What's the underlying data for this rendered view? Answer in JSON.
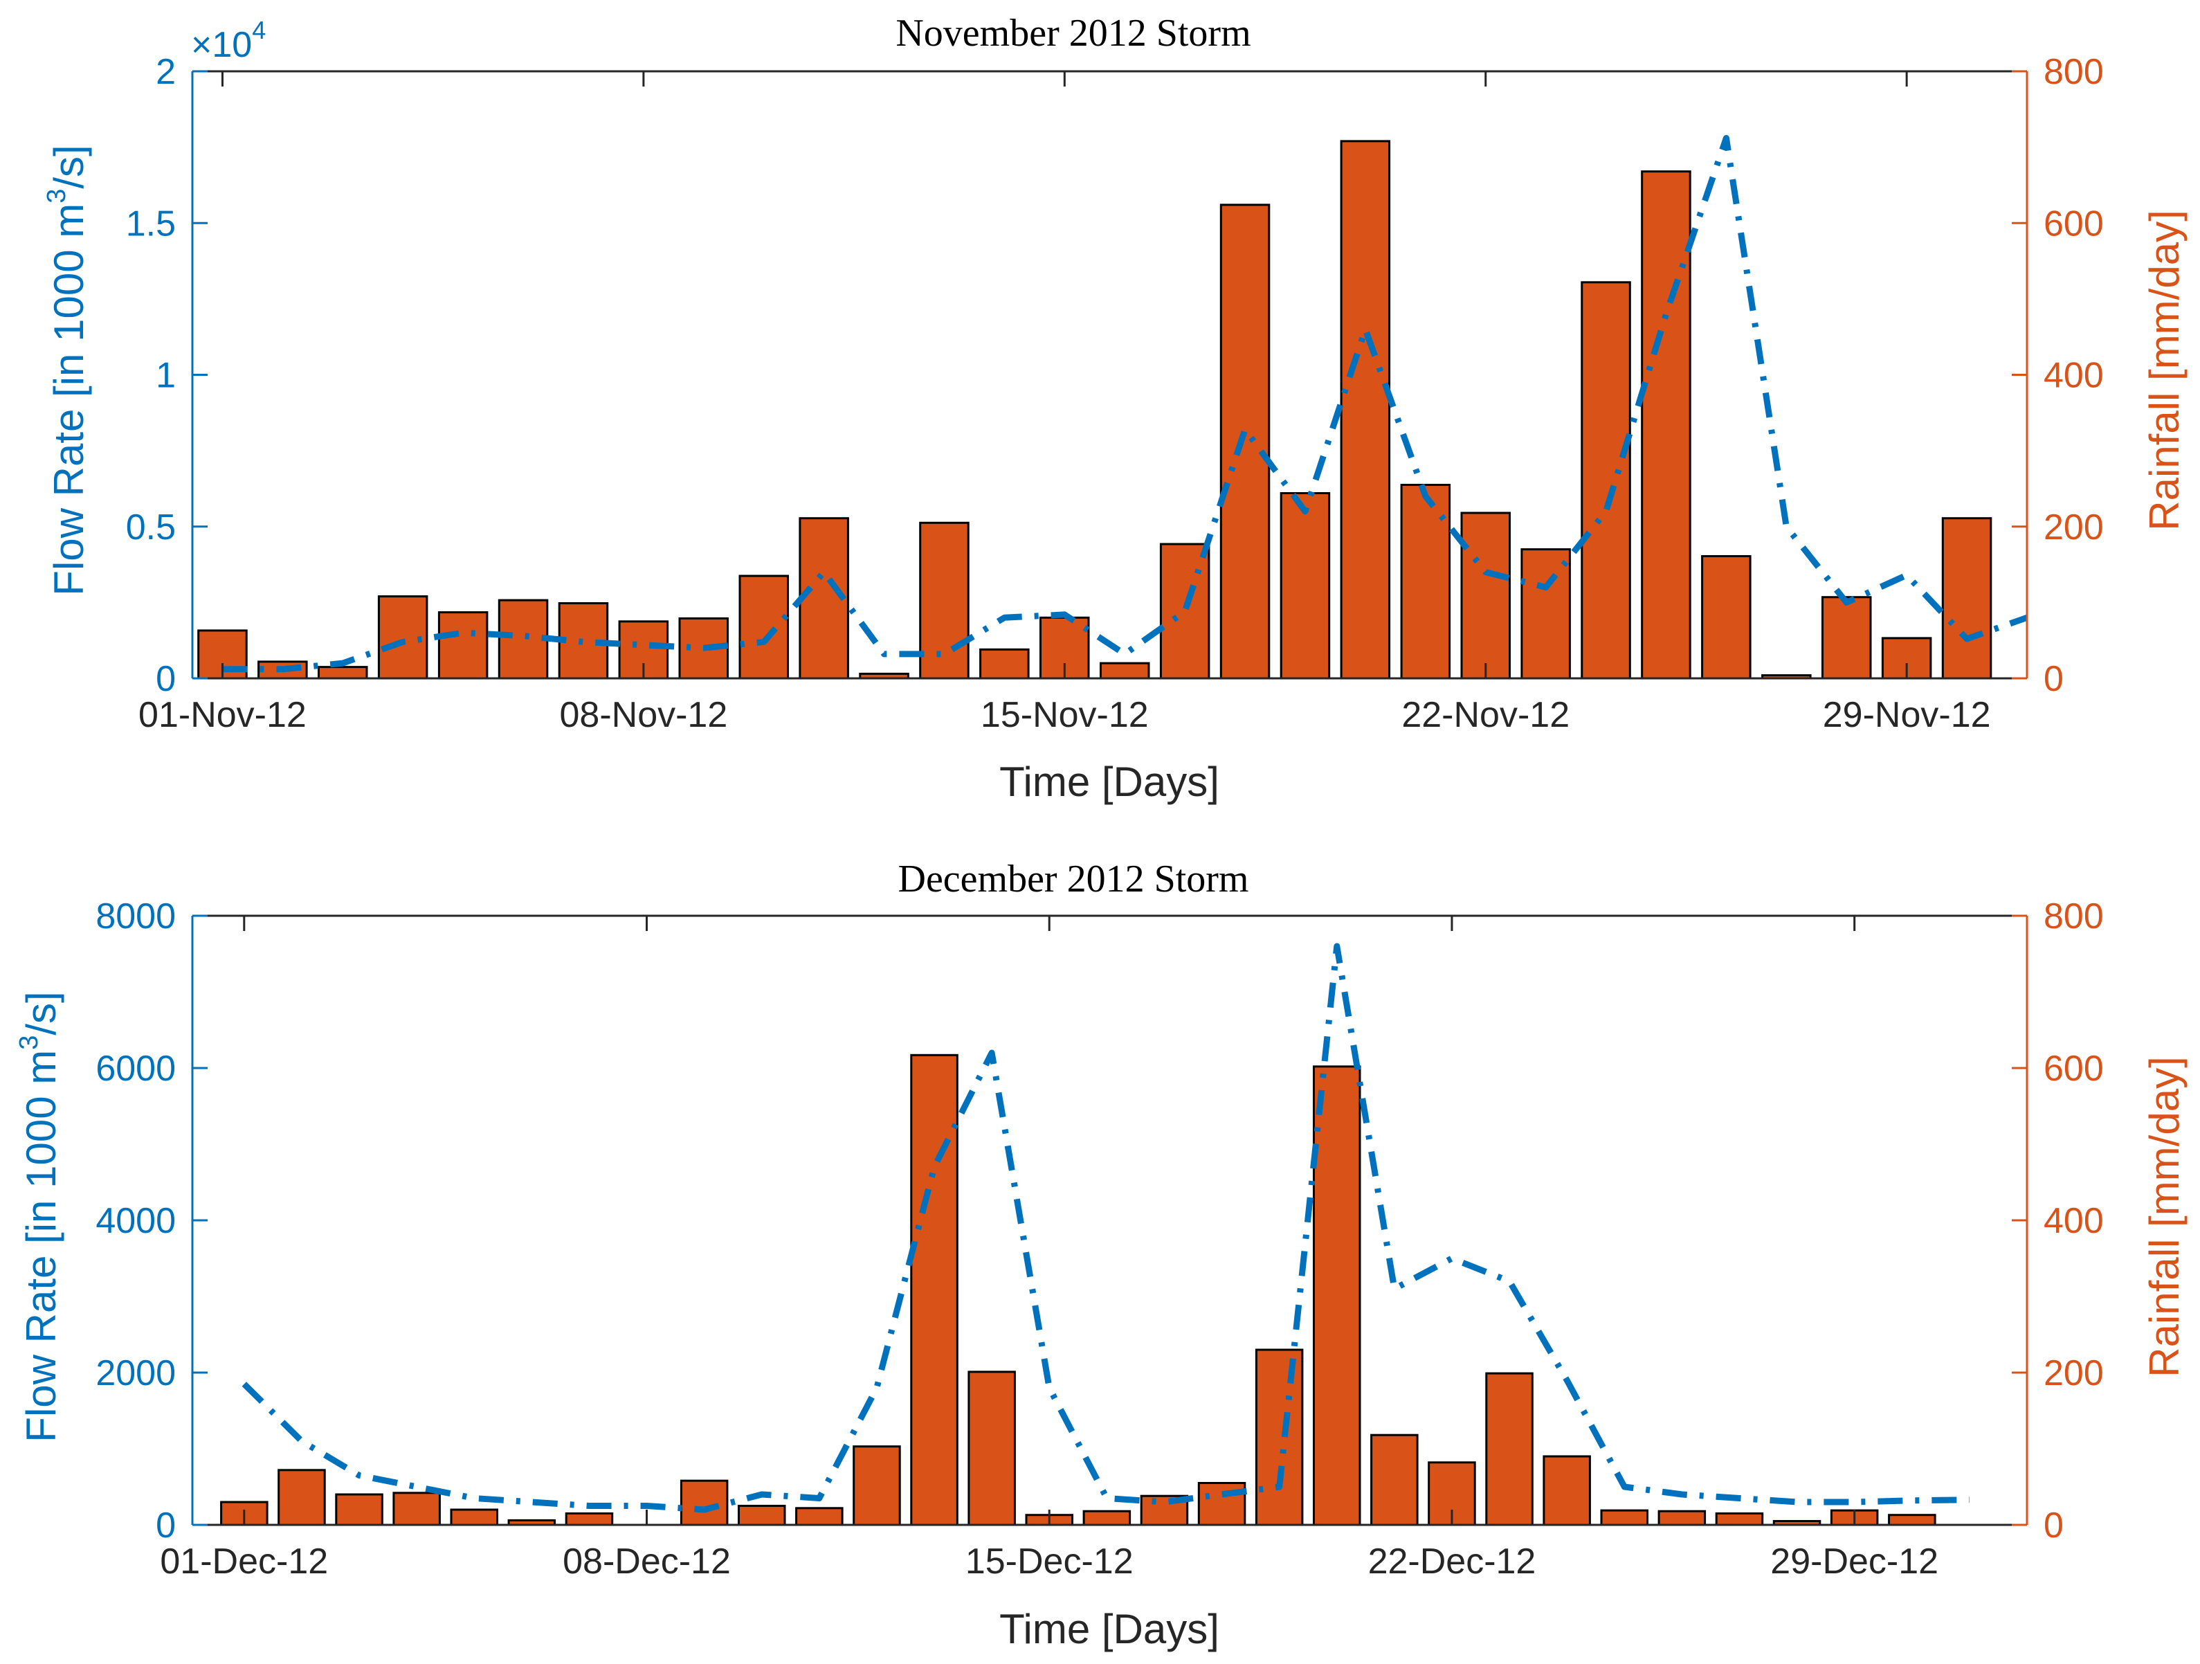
{
  "colors": {
    "flow": "#0072BD",
    "rain": "#D95319",
    "bar_edge": "#000000",
    "axis": "#262626"
  },
  "chart_data": [
    {
      "type": "bar+line",
      "title": "November 2012 Storm",
      "xlabel": "Time [Days]",
      "ylabel_left": "Flow Rate [in 1000 m³/s]",
      "ylabel_left_parts": [
        "Flow Rate [in 1000 m",
        "3",
        "/s]"
      ],
      "ylabel_right": "Rainfall [mm/day]",
      "xlim": [
        0.5,
        31
      ],
      "x_ticks": [
        1,
        8,
        15,
        22,
        29
      ],
      "x_tick_labels": [
        "01-Nov-12",
        "08-Nov-12",
        "15-Nov-12",
        "22-Nov-12",
        "29-Nov-12"
      ],
      "ylim_left": [
        0,
        2
      ],
      "y_ticks_left": [
        0,
        0.5,
        1,
        1.5,
        2
      ],
      "y_tick_labels_left": [
        "0",
        "0.5",
        "1",
        "1.5",
        "2"
      ],
      "exponent_label": "×10",
      "exponent_power": "4",
      "ylim_right": [
        0,
        800
      ],
      "y_ticks_right": [
        0,
        200,
        400,
        600,
        800
      ],
      "y_tick_labels_right": [
        "0",
        "200",
        "400",
        "600",
        "800"
      ],
      "series": [
        {
          "name": "Flow Rate",
          "axis": "left",
          "style": "dash-dot",
          "x": [
            1,
            2,
            3,
            4,
            5,
            6,
            7,
            8,
            9,
            10,
            11,
            12,
            13,
            14,
            15,
            16,
            17,
            18,
            19,
            20,
            21,
            22,
            23,
            24,
            25,
            26,
            27,
            28,
            29,
            30,
            31
          ],
          "values": [
            0.03,
            0.03,
            0.05,
            0.12,
            0.15,
            0.14,
            0.12,
            0.11,
            0.1,
            0.12,
            0.35,
            0.08,
            0.08,
            0.2,
            0.21,
            0.08,
            0.22,
            0.82,
            0.55,
            1.15,
            0.6,
            0.35,
            0.3,
            0.55,
            1.2,
            1.78,
            0.5,
            0.25,
            0.34,
            0.13,
            0.2
          ]
        },
        {
          "name": "Rainfall",
          "axis": "right",
          "x": [
            1,
            2,
            3,
            4,
            5,
            6,
            7,
            8,
            9,
            10,
            11,
            12,
            13,
            14,
            15,
            16,
            17,
            18,
            19,
            20,
            21,
            22,
            23,
            24,
            25,
            26,
            27,
            28,
            29,
            30,
            31
          ],
          "values": [
            63,
            22,
            15,
            108,
            87,
            103,
            99,
            75,
            79,
            135,
            211,
            6,
            205,
            38,
            80,
            20,
            177,
            624,
            244,
            708,
            255,
            218,
            170,
            522,
            668,
            161,
            4,
            107,
            53,
            211,
            0
          ]
        }
      ]
    },
    {
      "type": "bar+line",
      "title": "December 2012 Storm",
      "xlabel": "Time [Days]",
      "ylabel_left": "Flow Rate [in 1000 m³/s]",
      "ylabel_left_parts": [
        "Flow Rate [in 1000 m",
        "3",
        "/s]"
      ],
      "ylabel_right": "Rainfall [mm/day]",
      "xlim": [
        0.1,
        32
      ],
      "x_ticks": [
        1,
        8,
        15,
        22,
        29
      ],
      "x_tick_labels": [
        "01-Dec-12",
        "08-Dec-12",
        "15-Dec-12",
        "22-Dec-12",
        "29-Dec-12"
      ],
      "ylim_left": [
        0,
        8000
      ],
      "y_ticks_left": [
        0,
        2000,
        4000,
        6000,
        8000
      ],
      "y_tick_labels_left": [
        "0",
        "2000",
        "4000",
        "6000",
        "8000"
      ],
      "ylim_right": [
        0,
        800
      ],
      "y_ticks_right": [
        0,
        200,
        400,
        600,
        800
      ],
      "y_tick_labels_right": [
        "0",
        "200",
        "400",
        "600",
        "800"
      ],
      "series": [
        {
          "name": "Flow Rate",
          "axis": "left",
          "style": "dash-dot",
          "x": [
            1,
            2,
            3,
            4,
            5,
            6,
            7,
            8,
            9,
            10,
            11,
            12,
            13,
            14,
            15,
            16,
            17,
            18,
            19,
            20,
            21,
            22,
            23,
            24,
            25,
            26,
            27,
            28,
            29,
            30,
            31
          ],
          "values": [
            1850,
            1100,
            650,
            500,
            350,
            300,
            250,
            250,
            200,
            400,
            350,
            1800,
            4700,
            6200,
            1800,
            350,
            300,
            400,
            500,
            7600,
            3100,
            3500,
            3200,
            1900,
            500,
            400,
            350,
            300,
            300,
            320,
            330
          ]
        },
        {
          "name": "Rainfall",
          "axis": "right",
          "x": [
            1,
            2,
            3,
            4,
            5,
            6,
            7,
            8,
            9,
            10,
            11,
            12,
            13,
            14,
            15,
            16,
            17,
            18,
            19,
            20,
            21,
            22,
            23,
            24,
            25,
            26,
            27,
            28,
            29,
            30,
            31
          ],
          "values": [
            30,
            72,
            40,
            42,
            20,
            6,
            15,
            0,
            58,
            25,
            22,
            103,
            617,
            201,
            13,
            18,
            38,
            55,
            230,
            602,
            118,
            82,
            199,
            90,
            19,
            18,
            15,
            5,
            19,
            13,
            0
          ]
        }
      ]
    }
  ]
}
